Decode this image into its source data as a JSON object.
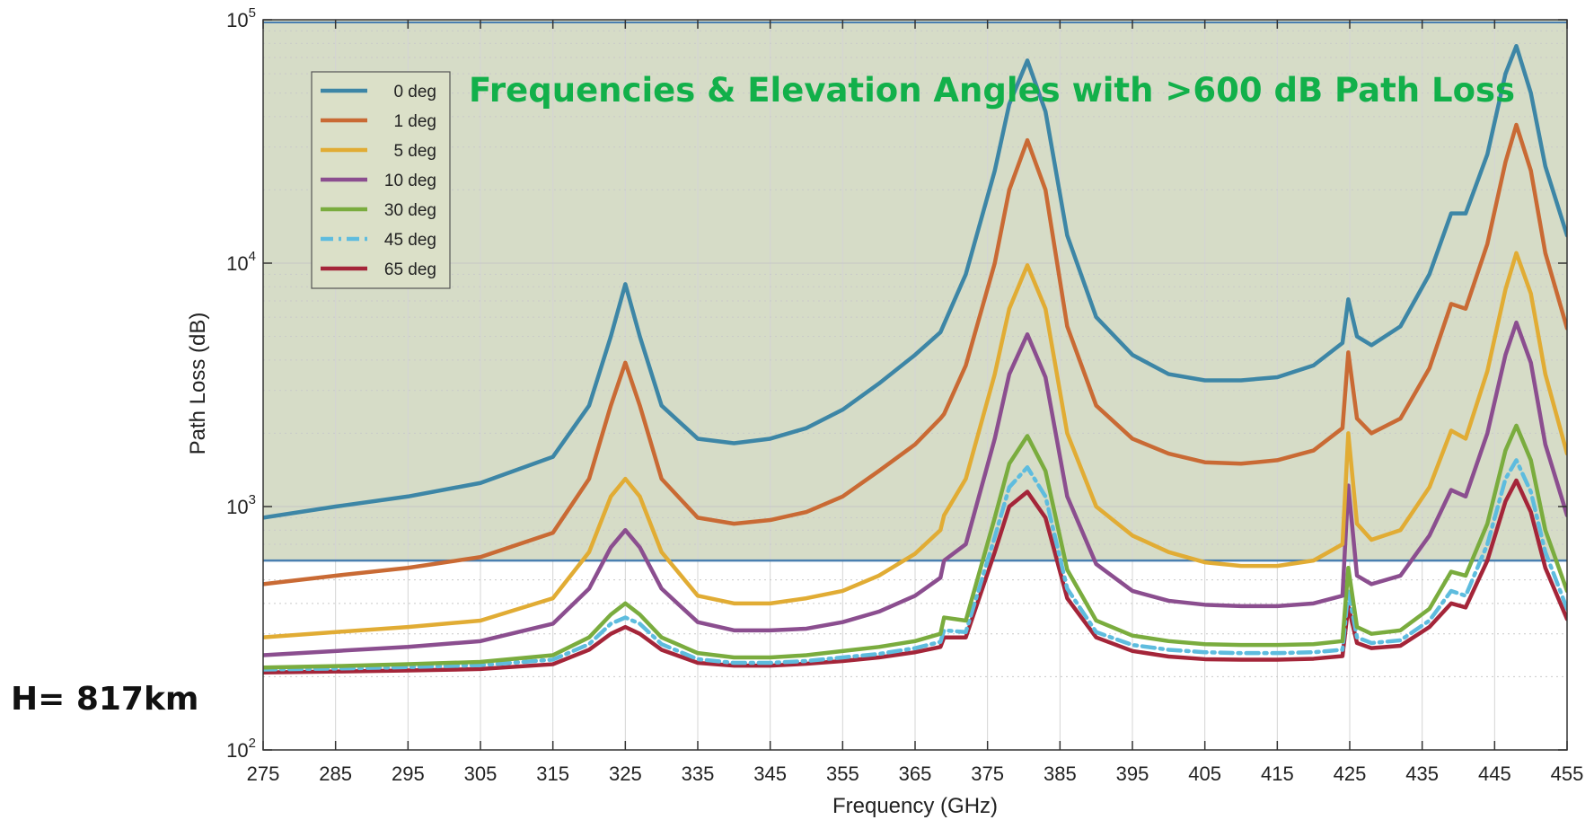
{
  "chart_data": {
    "type": "line",
    "xlabel": "Frequency (GHz)",
    "ylabel": "Path Loss (dB)",
    "xlim": [
      275,
      455
    ],
    "ylim": [
      100,
      100000
    ],
    "yscale": "log",
    "grid": true,
    "x_ticks": [
      "275",
      "285",
      "295",
      "305",
      "315",
      "325",
      "335",
      "345",
      "355",
      "365",
      "375",
      "385",
      "395",
      "405",
      "415",
      "425",
      "435",
      "445",
      "455"
    ],
    "x_tick_values": [
      275,
      285,
      295,
      305,
      315,
      325,
      335,
      345,
      355,
      365,
      375,
      385,
      395,
      405,
      415,
      425,
      435,
      445,
      455
    ],
    "y_ticks": [
      {
        "value": 100,
        "base": "10",
        "exp": "2"
      },
      {
        "value": 1000,
        "base": "10",
        "exp": "3"
      },
      {
        "value": 10000,
        "base": "10",
        "exp": "4"
      },
      {
        "value": 100000,
        "base": "10",
        "exp": "5"
      }
    ],
    "legend_placement": "top-left",
    "threshold": 600,
    "annotation": "Frequencies & Elevation Angles with >600 dB Path Loss",
    "side_note": "H= 817km",
    "colors": {
      "annotation": "#12b04a",
      "shade": "#cfd6bd",
      "threshold_line": "#4a7fb0"
    },
    "series": [
      {
        "name": "0 deg",
        "color": "#3d86a6",
        "dash": "solid",
        "x": [
          275,
          285,
          295,
          305,
          315,
          320,
          323,
          325,
          327,
          330,
          335,
          340,
          345,
          350,
          355,
          360,
          365,
          368.5,
          372,
          376,
          378,
          380.5,
          383,
          386,
          390,
          395,
          400,
          405,
          410,
          415,
          420,
          424,
          424.8,
          426,
          428,
          432,
          436,
          439,
          441,
          444,
          446.5,
          448,
          450,
          452,
          455
        ],
        "y": [
          900,
          1000,
          1100,
          1250,
          1600,
          2600,
          5000,
          8200,
          5000,
          2600,
          1900,
          1820,
          1900,
          2100,
          2500,
          3200,
          4200,
          5200,
          9000,
          24000,
          45000,
          68000,
          42000,
          13000,
          6000,
          4200,
          3500,
          3300,
          3300,
          3400,
          3800,
          4700,
          7100,
          5000,
          4600,
          5500,
          9000,
          16000,
          16000,
          28000,
          60000,
          78000,
          50000,
          25000,
          13000
        ]
      },
      {
        "name": "1 deg",
        "color": "#c96a34",
        "dash": "solid",
        "x": [
          275,
          285,
          295,
          305,
          315,
          320,
          323,
          325,
          327,
          330,
          335,
          340,
          345,
          350,
          355,
          360,
          365,
          368.5,
          369,
          372,
          376,
          378,
          380.5,
          383,
          386,
          390,
          395,
          400,
          405,
          410,
          415,
          420,
          424,
          424.8,
          426,
          428,
          432,
          436,
          439,
          441,
          444,
          446.5,
          448,
          450,
          452,
          455
        ],
        "y": [
          480,
          520,
          560,
          620,
          780,
          1300,
          2600,
          3900,
          2600,
          1300,
          900,
          850,
          880,
          950,
          1100,
          1400,
          1800,
          2300,
          2400,
          3800,
          10000,
          20000,
          32000,
          20000,
          5500,
          2600,
          1900,
          1650,
          1520,
          1500,
          1550,
          1700,
          2100,
          4300,
          2300,
          2000,
          2300,
          3700,
          6800,
          6500,
          12000,
          26000,
          37000,
          24000,
          11000,
          5400
        ]
      },
      {
        "name": "5 deg",
        "color": "#e1ac34",
        "dash": "solid",
        "x": [
          275,
          285,
          295,
          305,
          315,
          320,
          323,
          325,
          327,
          330,
          335,
          340,
          345,
          350,
          355,
          360,
          365,
          368.5,
          369,
          372,
          376,
          378,
          380.5,
          383,
          386,
          390,
          395,
          400,
          405,
          410,
          415,
          420,
          424,
          424.8,
          426,
          428,
          432,
          436,
          439,
          441,
          444,
          446.5,
          448,
          450,
          452,
          455
        ],
        "y": [
          290,
          305,
          320,
          340,
          420,
          650,
          1100,
          1300,
          1100,
          650,
          430,
          400,
          400,
          420,
          450,
          520,
          640,
          800,
          920,
          1300,
          3500,
          6500,
          9800,
          6500,
          2000,
          1000,
          760,
          650,
          590,
          570,
          570,
          600,
          700,
          2000,
          850,
          730,
          800,
          1200,
          2050,
          1900,
          3600,
          7800,
          11000,
          7500,
          3500,
          1650
        ]
      },
      {
        "name": "10 deg",
        "color": "#8b4e8f",
        "dash": "solid",
        "x": [
          275,
          285,
          295,
          305,
          315,
          320,
          323,
          325,
          327,
          330,
          335,
          340,
          345,
          350,
          355,
          360,
          365,
          368.5,
          369,
          372,
          376,
          378,
          380.5,
          383,
          386,
          390,
          395,
          400,
          405,
          410,
          415,
          420,
          424,
          424.8,
          426,
          428,
          432,
          436,
          439,
          441,
          444,
          446.5,
          448,
          450,
          452,
          455
        ],
        "y": [
          245,
          255,
          265,
          280,
          330,
          460,
          680,
          800,
          680,
          460,
          335,
          310,
          310,
          315,
          335,
          370,
          430,
          510,
          600,
          700,
          1900,
          3500,
          5100,
          3400,
          1100,
          580,
          450,
          410,
          395,
          390,
          390,
          400,
          430,
          1220,
          520,
          480,
          520,
          760,
          1170,
          1100,
          2000,
          4200,
          5700,
          3900,
          1800,
          920
        ]
      },
      {
        "name": "30 deg",
        "color": "#7aac3e",
        "dash": "solid",
        "x": [
          275,
          285,
          295,
          305,
          315,
          320,
          323,
          325,
          327,
          330,
          335,
          340,
          345,
          350,
          355,
          360,
          365,
          368.5,
          369,
          372,
          376,
          378,
          380.5,
          383,
          386,
          390,
          395,
          400,
          405,
          410,
          415,
          420,
          424,
          424.8,
          426,
          428,
          432,
          436,
          439,
          441,
          444,
          446.5,
          448,
          450,
          452,
          455
        ],
        "y": [
          218,
          221,
          225,
          230,
          245,
          290,
          360,
          400,
          360,
          290,
          250,
          240,
          240,
          245,
          255,
          265,
          280,
          300,
          350,
          340,
          900,
          1500,
          1950,
          1400,
          550,
          340,
          295,
          280,
          272,
          270,
          270,
          272,
          280,
          560,
          320,
          300,
          310,
          380,
          540,
          520,
          850,
          1700,
          2150,
          1550,
          800,
          450
        ]
      },
      {
        "name": "45 deg",
        "color": "#5ebcde",
        "dash": "dashdot",
        "x": [
          275,
          285,
          295,
          305,
          315,
          320,
          323,
          325,
          327,
          330,
          335,
          340,
          345,
          350,
          355,
          360,
          365,
          368.5,
          369,
          372,
          376,
          378,
          380.5,
          383,
          386,
          390,
          395,
          400,
          405,
          410,
          415,
          420,
          424,
          424.8,
          426,
          428,
          432,
          436,
          439,
          441,
          444,
          446.5,
          448,
          450,
          452,
          455
        ],
        "y": [
          214,
          216,
          219,
          223,
          235,
          272,
          330,
          350,
          330,
          272,
          236,
          228,
          228,
          232,
          240,
          248,
          262,
          278,
          310,
          305,
          750,
          1200,
          1450,
          1100,
          460,
          305,
          270,
          258,
          252,
          250,
          250,
          252,
          258,
          450,
          290,
          275,
          282,
          340,
          450,
          430,
          700,
          1300,
          1550,
          1150,
          650,
          380
        ]
      },
      {
        "name": "65 deg",
        "color": "#a42539",
        "dash": "solid",
        "x": [
          275,
          285,
          295,
          305,
          315,
          320,
          323,
          325,
          327,
          330,
          335,
          340,
          345,
          350,
          355,
          360,
          365,
          368.5,
          369,
          372,
          376,
          378,
          380.5,
          383,
          386,
          390,
          395,
          400,
          405,
          410,
          415,
          420,
          424,
          424.8,
          426,
          428,
          432,
          436,
          439,
          441,
          444,
          446.5,
          448,
          450,
          452,
          455
        ],
        "y": [
          208,
          210,
          212,
          215,
          225,
          258,
          300,
          320,
          300,
          258,
          228,
          222,
          222,
          226,
          232,
          240,
          252,
          265,
          290,
          290,
          650,
          1000,
          1150,
          900,
          420,
          290,
          255,
          242,
          236,
          235,
          235,
          237,
          243,
          390,
          275,
          262,
          268,
          320,
          400,
          385,
          600,
          1050,
          1280,
          950,
          560,
          345
        ]
      }
    ]
  }
}
